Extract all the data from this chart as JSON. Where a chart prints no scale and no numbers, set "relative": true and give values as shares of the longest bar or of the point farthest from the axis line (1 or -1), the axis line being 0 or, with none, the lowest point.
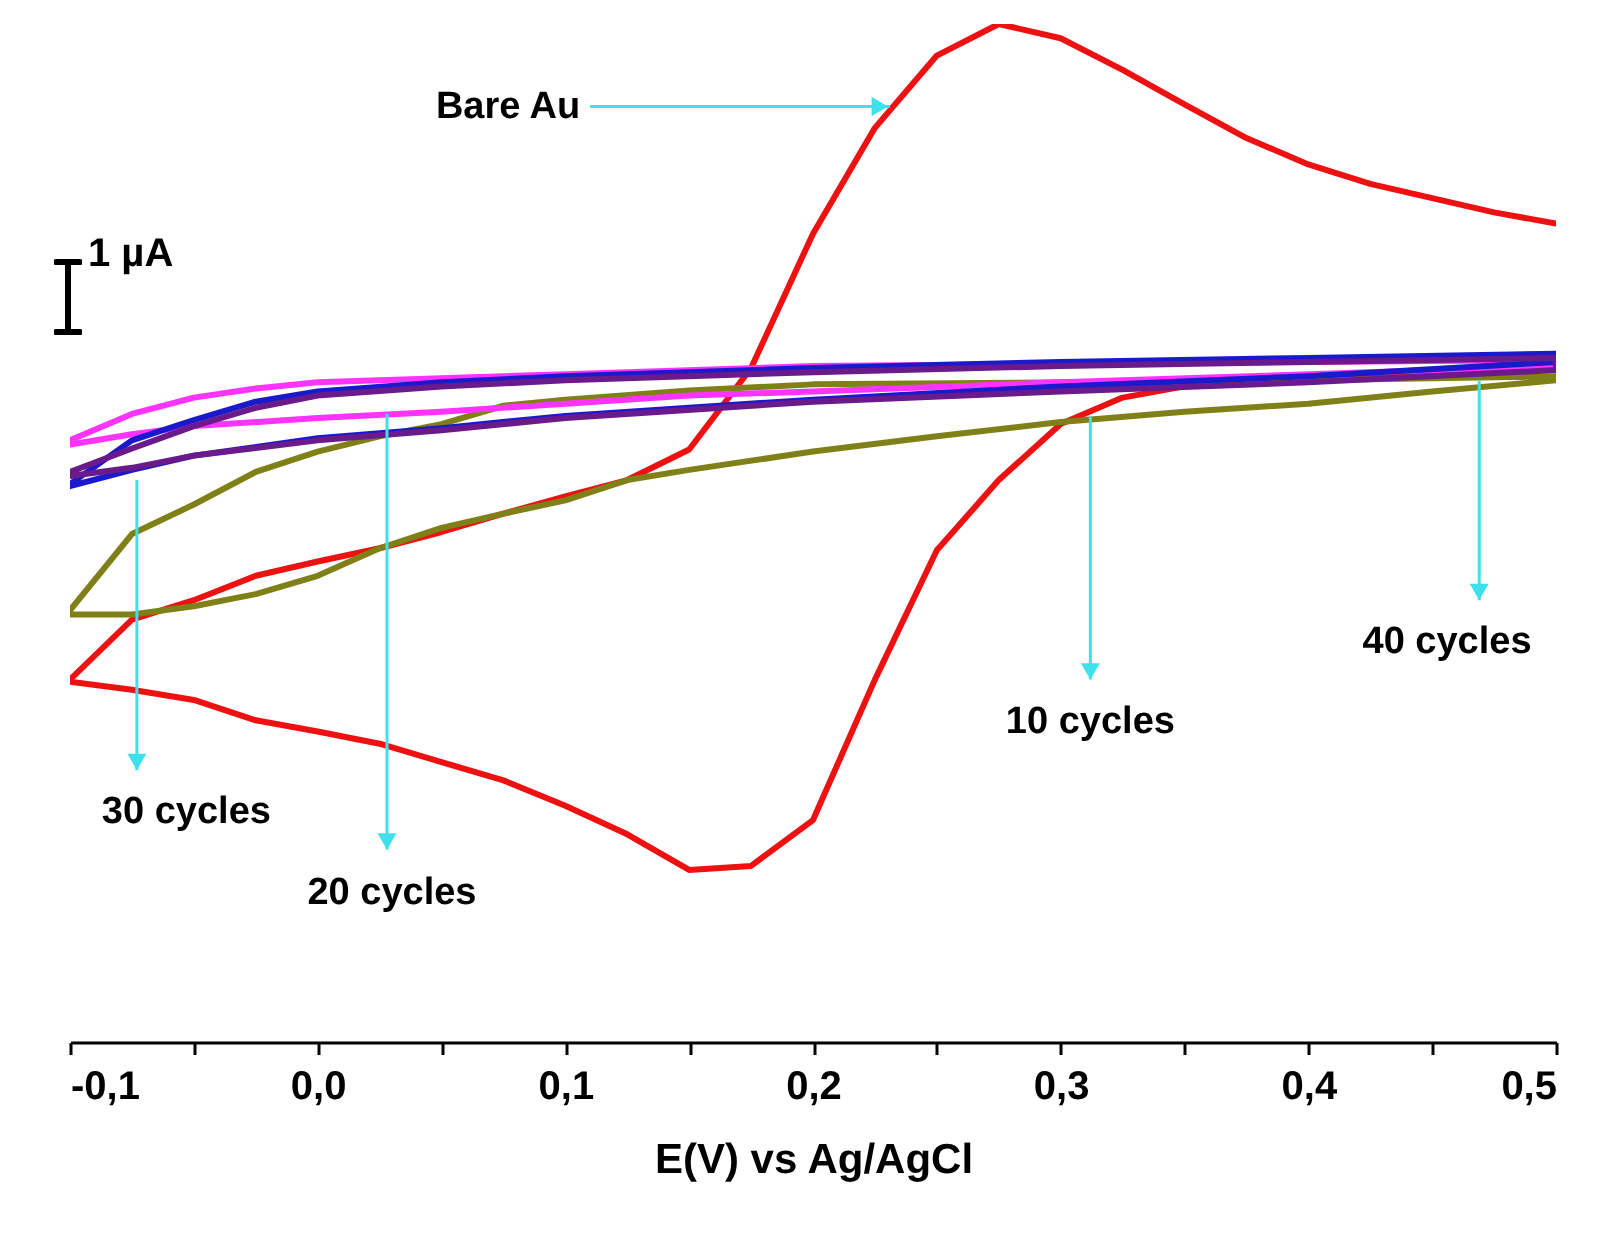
{
  "chart_data": {
    "type": "line",
    "relative": true,
    "xlabel": "E(V) vs Ag/AgCl",
    "xlim": [
      -0.1,
      0.5
    ],
    "xticks": [
      {
        "value": -0.1,
        "label": "-0,1"
      },
      {
        "value": -0.05,
        "label": null
      },
      {
        "value": 0,
        "label": "0,0"
      },
      {
        "value": 0.05,
        "label": null
      },
      {
        "value": 0.1,
        "label": "0,1"
      },
      {
        "value": 0.15,
        "label": null
      },
      {
        "value": 0.2,
        "label": "0,2"
      },
      {
        "value": 0.25,
        "label": null
      },
      {
        "value": 0.3,
        "label": "0,3"
      },
      {
        "value": 0.35,
        "label": null
      },
      {
        "value": 0.4,
        "label": "0,4"
      },
      {
        "value": 0.45,
        "label": null
      },
      {
        "value": 0.5,
        "label": "0,5"
      }
    ],
    "marker": "none",
    "line_style": "solid",
    "series": [
      {
        "color": "#ee1111",
        "x": [
          -0.1,
          -0.075,
          -0.05,
          -0.025,
          0,
          0.025,
          0.05,
          0.075,
          0.1,
          0.125,
          0.15,
          0.175,
          0.2,
          0.225,
          0.25,
          0.275,
          0.3,
          0.325,
          0.35,
          0.375,
          0.4,
          0.425,
          0.45,
          0.475,
          0.5,
          null,
          0.5,
          0.45,
          0.4,
          0.35,
          0.325,
          0.3,
          0.275,
          0.25,
          0.225,
          0.2,
          0.175,
          0.15,
          0.125,
          0.1,
          0.075,
          0.05,
          0.025,
          0,
          -0.025,
          -0.05,
          -0.075,
          -0.1
        ],
        "values": [
          0.356,
          0.415,
          0.434,
          0.458,
          0.472,
          0.485,
          0.501,
          0.519,
          0.536,
          0.552,
          0.582,
          0.662,
          0.794,
          0.898,
          0.969,
          1,
          0.986,
          0.955,
          0.921,
          0.888,
          0.862,
          0.843,
          0.829,
          0.815,
          0.804,
          null,
          0.664,
          0.658,
          0.652,
          0.644,
          0.633,
          0.607,
          0.552,
          0.483,
          0.356,
          0.218,
          0.173,
          0.169,
          0.204,
          0.232,
          0.257,
          0.275,
          0.293,
          0.305,
          0.316,
          0.336,
          0.346,
          0.354
        ]
      },
      {
        "color": "#808018",
        "x": [
          -0.1,
          -0.075,
          -0.05,
          -0.025,
          0,
          0.025,
          0.05,
          0.075,
          0.1,
          0.15,
          0.2,
          0.3,
          0.4,
          0.5,
          0.5,
          0.45,
          0.4,
          0.35,
          0.3,
          0.25,
          0.2,
          0.15,
          0.125,
          0.1,
          0.075,
          0.05,
          0.025,
          0,
          -0.025,
          -0.05,
          -0.075,
          -0.1
        ],
        "values": [
          0.424,
          0.499,
          0.528,
          0.56,
          0.58,
          0.595,
          0.607,
          0.625,
          0.631,
          0.64,
          0.646,
          0.648,
          0.65,
          0.654,
          0.65,
          0.639,
          0.627,
          0.619,
          0.609,
          0.595,
          0.58,
          0.562,
          0.552,
          0.532,
          0.519,
          0.505,
          0.485,
          0.458,
          0.44,
          0.428,
          0.42,
          0.42
        ]
      },
      {
        "color": "#ff33ff",
        "x": [
          -0.1,
          -0.075,
          -0.05,
          -0.025,
          0,
          0.05,
          0.1,
          0.2,
          0.3,
          0.4,
          0.5,
          0.5,
          0.4,
          0.3,
          0.2,
          0.15,
          0.1,
          0.05,
          0,
          -0.05,
          -0.075,
          -0.1
        ],
        "values": [
          0.591,
          0.617,
          0.633,
          0.642,
          0.648,
          0.652,
          0.656,
          0.664,
          0.666,
          0.668,
          0.67,
          0.664,
          0.656,
          0.648,
          0.639,
          0.635,
          0.627,
          0.619,
          0.613,
          0.605,
          0.597,
          0.587
        ]
      },
      {
        "color": "#1a1acc",
        "x": [
          -0.1,
          -0.075,
          -0.05,
          -0.025,
          0,
          0.05,
          0.1,
          0.2,
          0.3,
          0.4,
          0.5,
          0.5,
          0.4,
          0.3,
          0.2,
          0.1,
          0.05,
          0,
          -0.05,
          -0.075,
          -0.1
        ],
        "values": [
          0.548,
          0.591,
          0.611,
          0.629,
          0.639,
          0.648,
          0.654,
          0.662,
          0.668,
          0.672,
          0.676,
          0.668,
          0.654,
          0.644,
          0.631,
          0.615,
          0.603,
          0.593,
          0.576,
          0.562,
          0.546
        ]
      },
      {
        "color": "#6a1a8a",
        "x": [
          -0.1,
          -0.075,
          -0.05,
          -0.025,
          0,
          0.05,
          0.1,
          0.2,
          0.3,
          0.4,
          0.5,
          0.5,
          0.4,
          0.3,
          0.2,
          0.1,
          0.05,
          0,
          -0.05,
          -0.075,
          -0.1
        ],
        "values": [
          0.56,
          0.583,
          0.605,
          0.623,
          0.635,
          0.644,
          0.65,
          0.658,
          0.664,
          0.668,
          0.672,
          0.66,
          0.648,
          0.639,
          0.629,
          0.613,
          0.601,
          0.591,
          0.576,
          0.564,
          0.556
        ]
      }
    ],
    "annotations": [
      {
        "text": "Bare Au",
        "x": 0.231,
        "y": 0.919
      },
      {
        "text": "10 cycles",
        "x": 0.312,
        "y": 0.615
      },
      {
        "text": "20 cycles",
        "x": 0.028,
        "y": 0.617
      },
      {
        "text": "30 cycles",
        "x": -0.073,
        "y": 0.552
      },
      {
        "text": "40 cycles",
        "x": 0.469,
        "y": 0.65
      },
      "1 µA"
    ]
  }
}
